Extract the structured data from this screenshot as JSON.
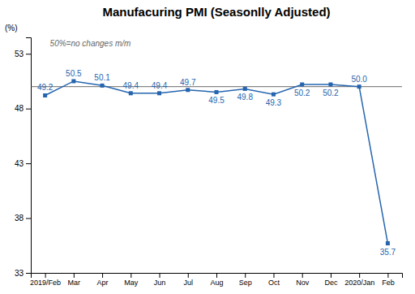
{
  "chart_data": {
    "type": "line",
    "title": "Manufacuring PMI (Seasonlly Adjusted)",
    "y_label": "(%)",
    "categories": [
      "2019/Feb",
      "Mar",
      "Apr",
      "May",
      "Jun",
      "Jul",
      "Aug",
      "Sep",
      "Oct",
      "Nov",
      "Dec",
      "2020/Jan",
      "Feb"
    ],
    "values": [
      49.2,
      50.5,
      50.1,
      49.4,
      49.4,
      49.7,
      49.5,
      49.8,
      49.3,
      50.2,
      50.2,
      50.0,
      35.7
    ],
    "value_labels": [
      "49.2",
      "50.5",
      "50.1",
      "49.4",
      "49.4",
      "49.7",
      "49.5",
      "49.8",
      "49.3",
      "50.2",
      "50.2",
      "50.0",
      "35.7"
    ],
    "data_labels": true,
    "color": "#2565ae",
    "marker": "square",
    "reference_line": {
      "value": 50.0,
      "label": "50%=no changes  m/m"
    },
    "ylim": [
      33,
      54.5
    ],
    "yticks": [
      33,
      38,
      43,
      48,
      53
    ],
    "grid": false
  }
}
